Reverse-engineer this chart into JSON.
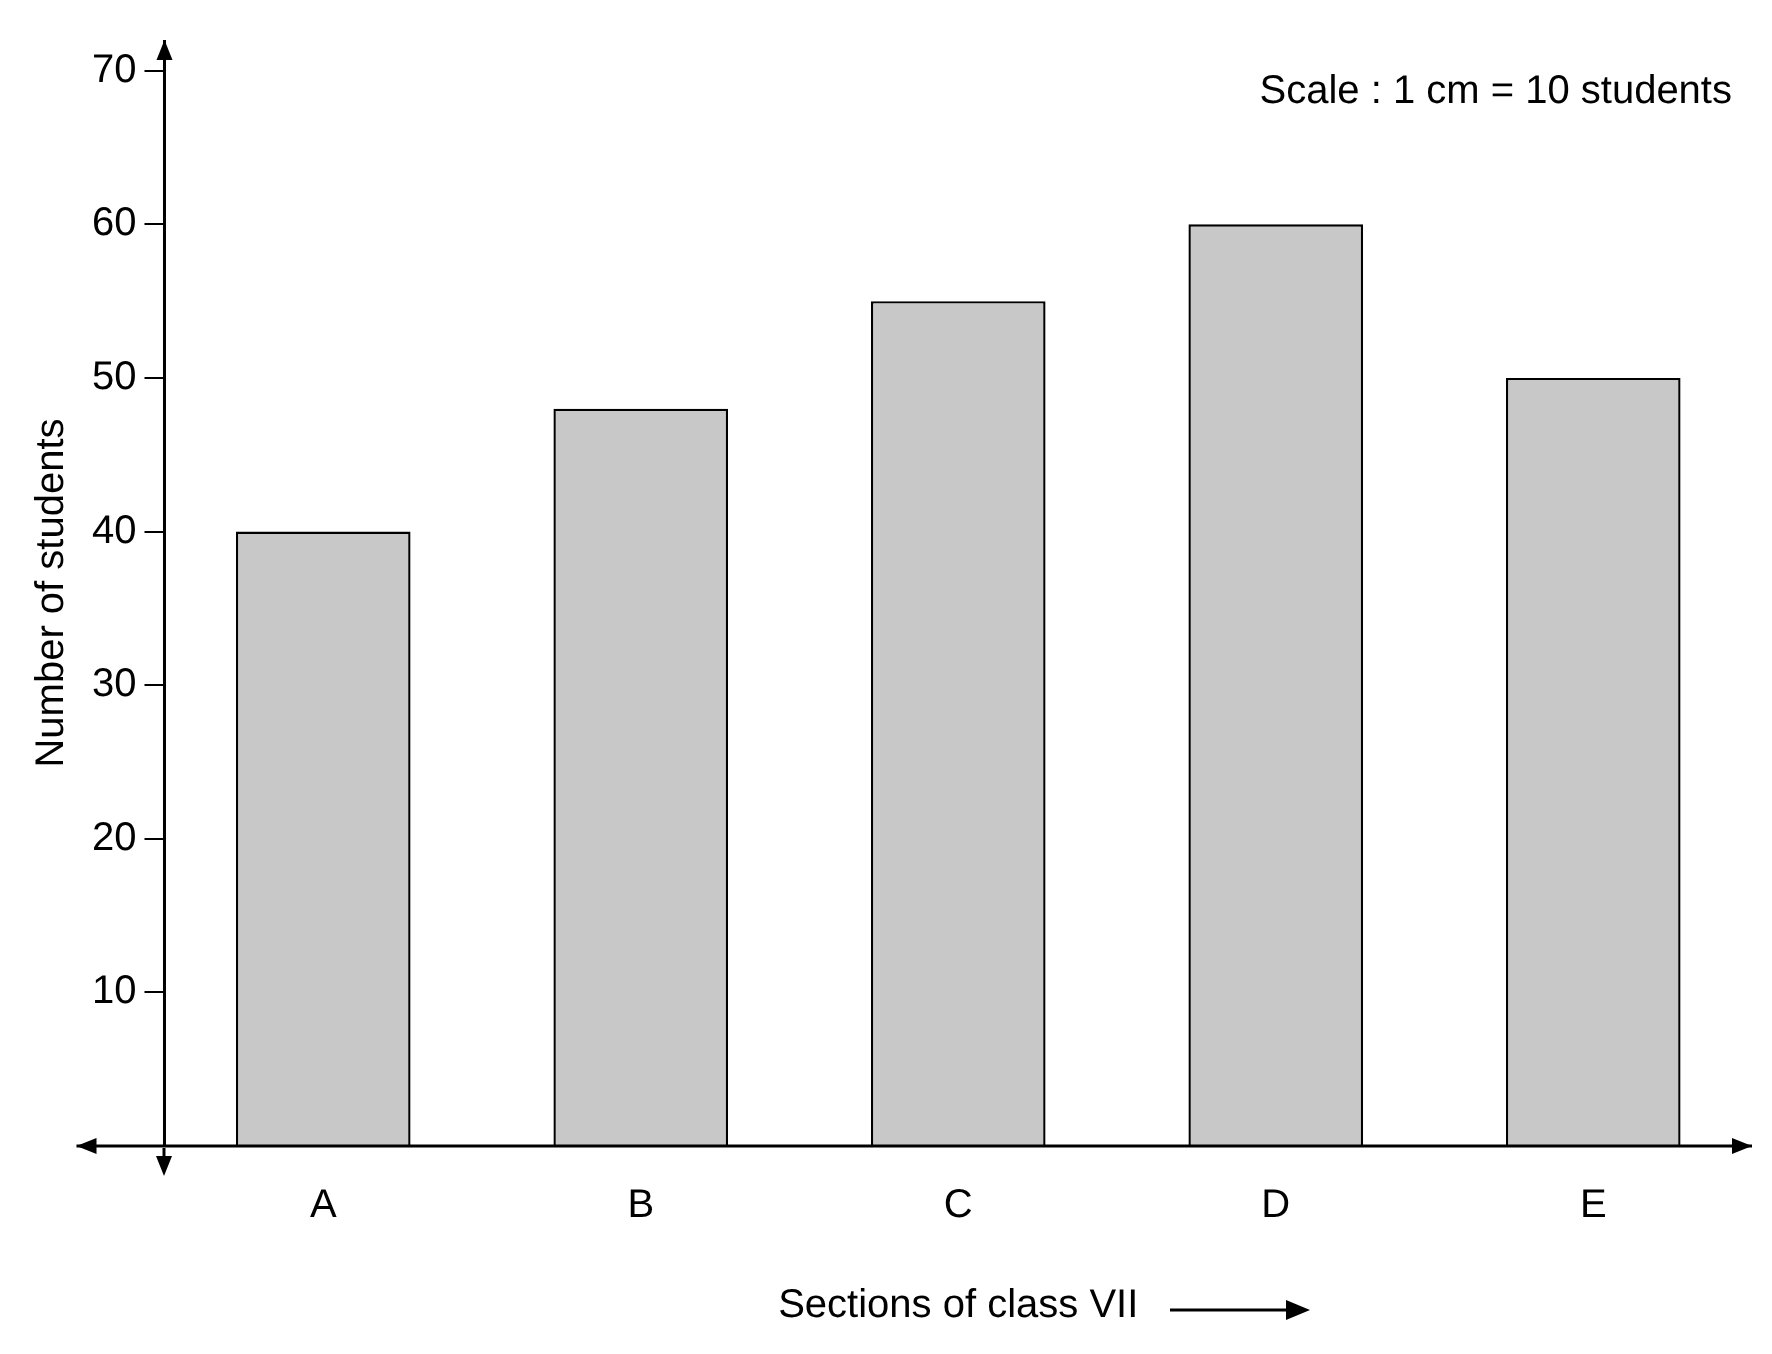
{
  "chart_data": {
    "type": "bar",
    "xlabel": "Sections of class VII",
    "ylabel": "Number of students",
    "categories": [
      "A",
      "B",
      "C",
      "D",
      "E"
    ],
    "values": [
      40,
      48,
      55,
      60,
      50
    ],
    "color": "#c8c8c8",
    "ylim": [
      0,
      72
    ],
    "yticks": [
      10,
      20,
      30,
      40,
      50,
      60,
      70
    ],
    "grid": false,
    "legend": false,
    "annotations": [
      "Scale : 1 cm = 10 students"
    ]
  }
}
